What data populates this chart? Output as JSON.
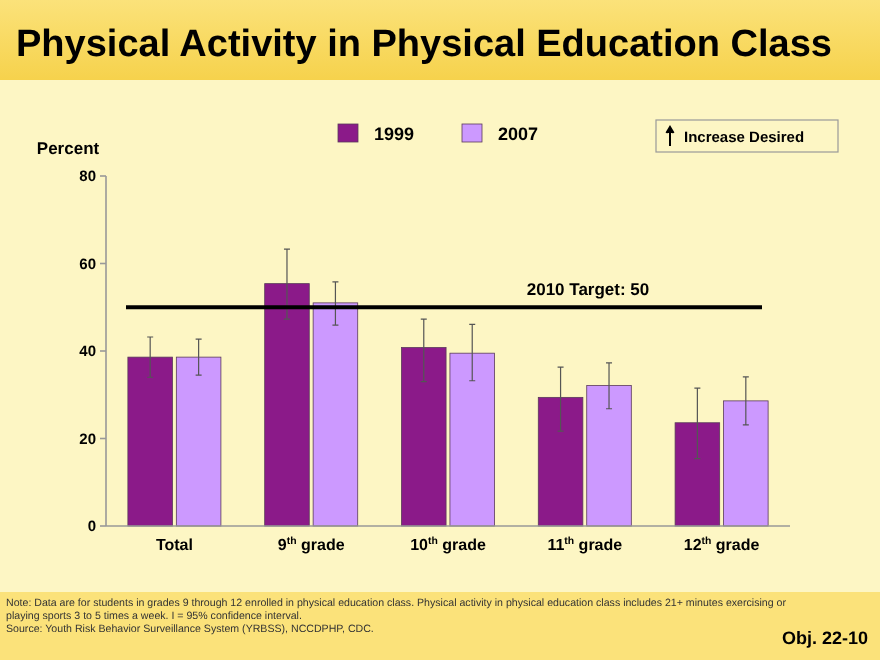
{
  "chart_data": {
    "type": "bar",
    "title": "Physical Activity in Physical Education Class",
    "ylabel": "Percent",
    "categories": [
      "Total",
      "9$^{th}$ grade",
      "10$^{th}$ grade",
      "11$^{th}$ grade",
      "12$^{th}$ grade"
    ],
    "series": [
      {
        "name": "1999",
        "color": "#8b1a89",
        "values": [
          38.6,
          55.4,
          40.8,
          29.4,
          23.6
        ],
        "errors": [
          [
            34,
            43.2
          ],
          [
            47.3,
            63.3
          ],
          [
            33,
            47.3
          ],
          [
            21.7,
            36.3
          ],
          [
            15.4,
            31.5
          ]
        ]
      },
      {
        "name": "2007",
        "color": "#cc99ff",
        "values": [
          38.6,
          51,
          39.5,
          32.1,
          28.6
        ],
        "errors": [
          [
            34.5,
            42.7
          ],
          [
            45.9,
            55.8
          ],
          [
            33.2,
            46.1
          ],
          [
            26.8,
            37.3
          ],
          [
            23.1,
            34.1
          ]
        ]
      }
    ],
    "ylim": [
      0,
      80
    ],
    "yticks": [
      0,
      20,
      40,
      60,
      80
    ],
    "grid": false,
    "legend": "top",
    "ref_lines": [
      {
        "axis": "y",
        "value": 50,
        "label": "2010 Target: 50",
        "color": "#000000"
      }
    ],
    "annotations": [
      "Increase Desired",
      "Note:  Data are for students in grades 9 through 12 enrolled in physical education class. Physical activity in physical education class includes 21+ minutes exercising or playing sports 3 to 5 times a week. I = 95% confidence interval.",
      "Source: Youth Risk Behavior Surveillance System (YRBSS), NCCDPHP, CDC.",
      "Obj. 22-10"
    ]
  }
}
